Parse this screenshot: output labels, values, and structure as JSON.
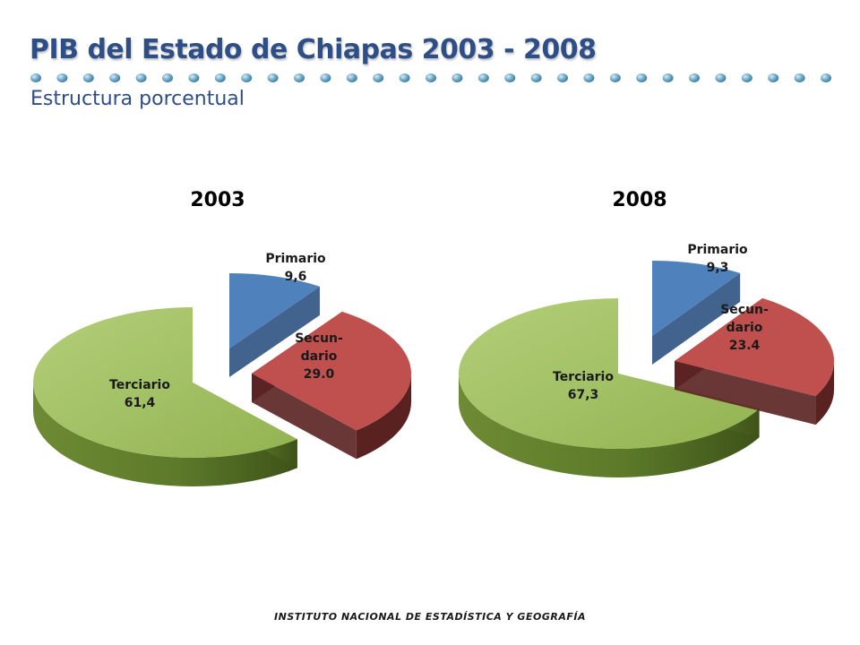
{
  "header": {
    "title": "PIB del Estado de Chiapas 2003 - 2008",
    "subtitle": "Estructura porcentual"
  },
  "footer": {
    "text": "INSTITUTO NACIONAL DE ESTADÍSTICA Y GEOGRAFÍA"
  },
  "colors": {
    "primario": "#4f81bd",
    "secundario": "#c0504d",
    "terciario": "#9bbb59",
    "title": "#2d4e86",
    "dots": "#6fa8c8"
  },
  "chart_data": [
    {
      "type": "pie",
      "title": "2003",
      "categories": [
        "Primario",
        "Secun-dario",
        "Terciario"
      ],
      "values": [
        9.6,
        29.0,
        61.4
      ],
      "labels": [
        [
          "Primario",
          "9,6"
        ],
        [
          "Secun-",
          "dario",
          "29.0"
        ],
        [
          "Terciario",
          "61,4"
        ]
      ]
    },
    {
      "type": "pie",
      "title": "2008",
      "categories": [
        "Primario",
        "Secun-dario",
        "Terciario"
      ],
      "values": [
        9.3,
        23.4,
        67.3
      ],
      "labels": [
        [
          "Primario",
          "9,3"
        ],
        [
          "Secun-",
          "dario",
          "23.4"
        ],
        [
          "Terciario",
          "67,3"
        ]
      ]
    }
  ]
}
